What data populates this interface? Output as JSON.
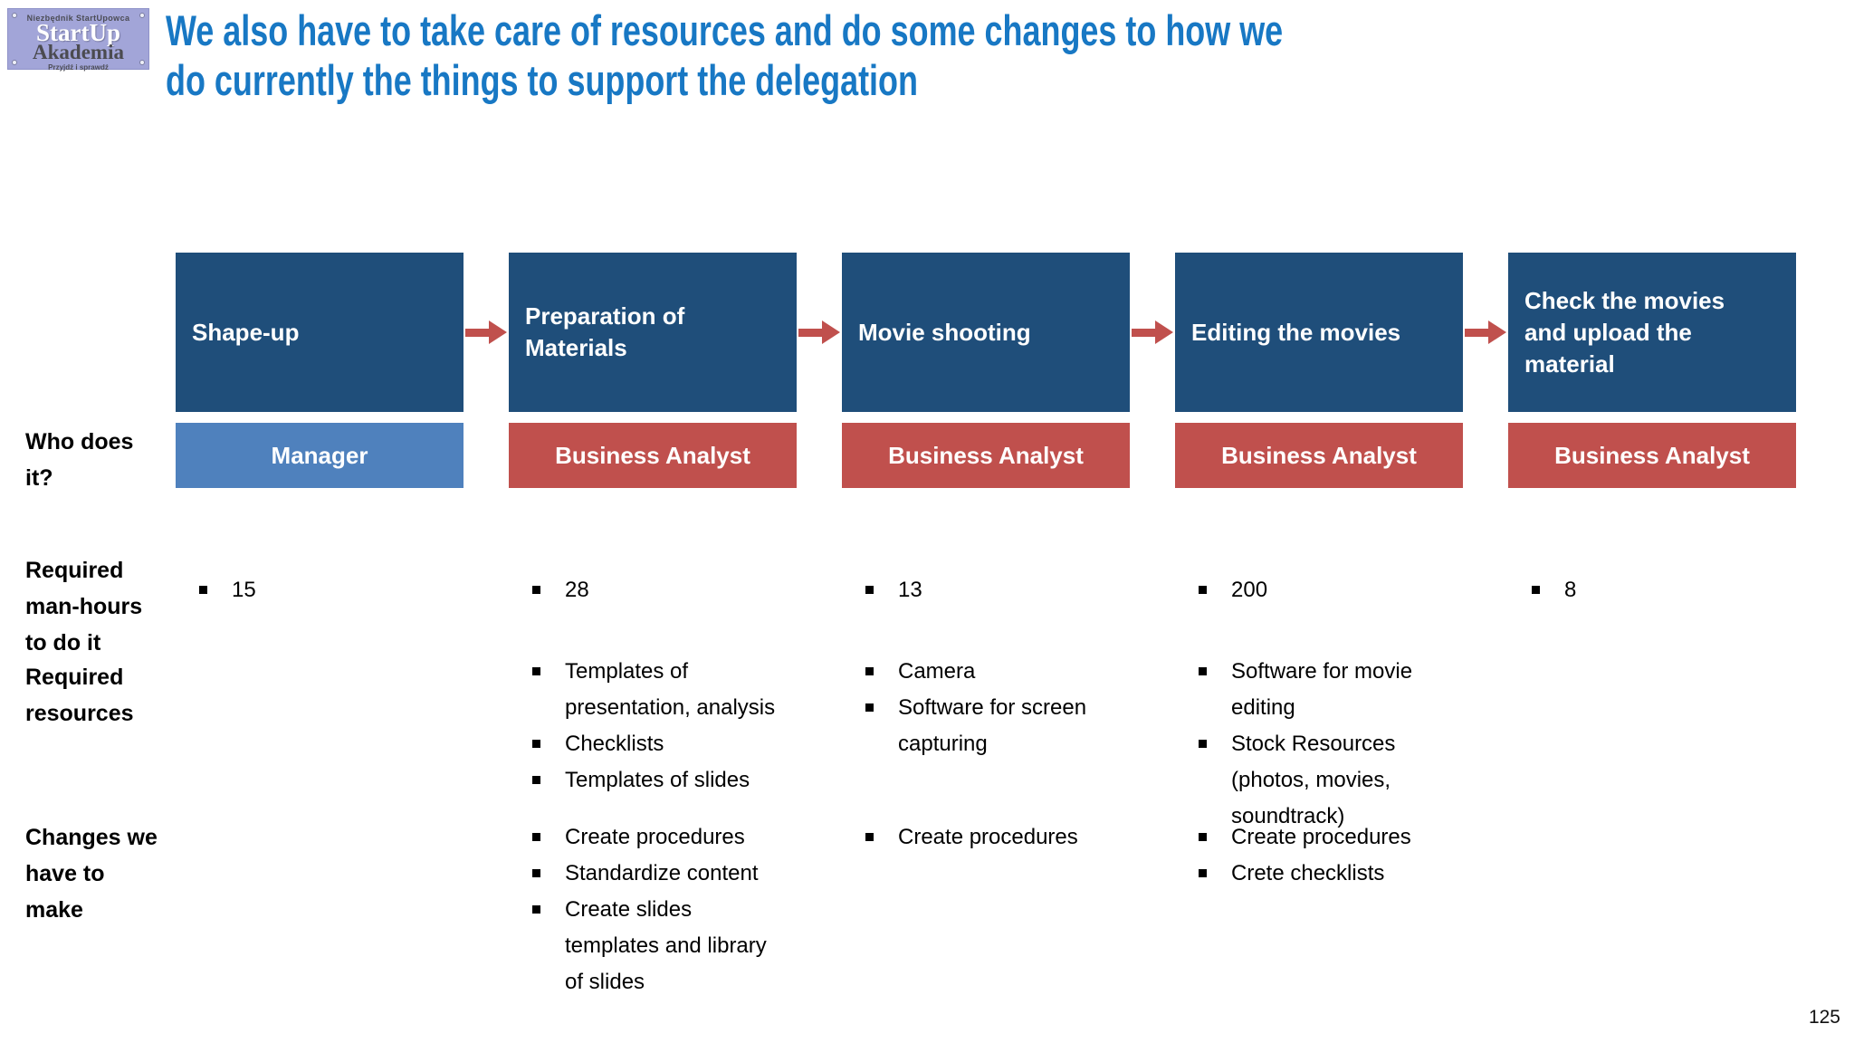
{
  "logo": {
    "top_text": "Niezbędnik StartUpowca",
    "main_line1": "StartUp",
    "main_line2": "Akademia",
    "bottom_text": "Przyjdź i sprawdź"
  },
  "title": {
    "line1": "We also have to take care of resources and do some changes to how we",
    "line2": "do currently the things to support the delegation"
  },
  "colors": {
    "title_blue": "#1878c4",
    "step_box_blue": "#1f4e7a",
    "manager_blue": "#4f81bd",
    "analyst_red": "#c0504d",
    "arrow_red": "#c0504d"
  },
  "row_labels": {
    "who": "Who does\nit?",
    "hours": "Required\nman-hours\nto do it",
    "resources": "Required\nresources",
    "changes": "Changes we\nhave to\nmake"
  },
  "columns": [
    {
      "step": "Shape-up",
      "role": "Manager",
      "hours": "15",
      "resources": [],
      "changes": []
    },
    {
      "step": "Preparation of\nMaterials",
      "role": "Business Analyst",
      "hours": "28",
      "resources": [
        "Templates of\npresentation, analysis",
        "Checklists",
        "Templates of slides"
      ],
      "changes": [
        "Create procedures",
        "Standardize content",
        "Create slides\ntemplates and library\nof slides"
      ]
    },
    {
      "step": "Movie shooting",
      "role": "Business Analyst",
      "hours": "13",
      "resources": [
        "Camera",
        "Software for screen\ncapturing"
      ],
      "changes": [
        "Create procedures"
      ]
    },
    {
      "step": "Editing the movies",
      "role": "Business Analyst",
      "hours": "200",
      "resources": [
        "Software for movie\nediting",
        "Stock Resources\n(photos, movies,\nsoundtrack)"
      ],
      "changes": [
        "Create procedures",
        "Crete checklists"
      ]
    },
    {
      "step": "Check the movies\nand upload the\nmaterial",
      "role": "Business Analyst",
      "hours": "8",
      "resources": [],
      "changes": []
    }
  ],
  "page_number": "125"
}
